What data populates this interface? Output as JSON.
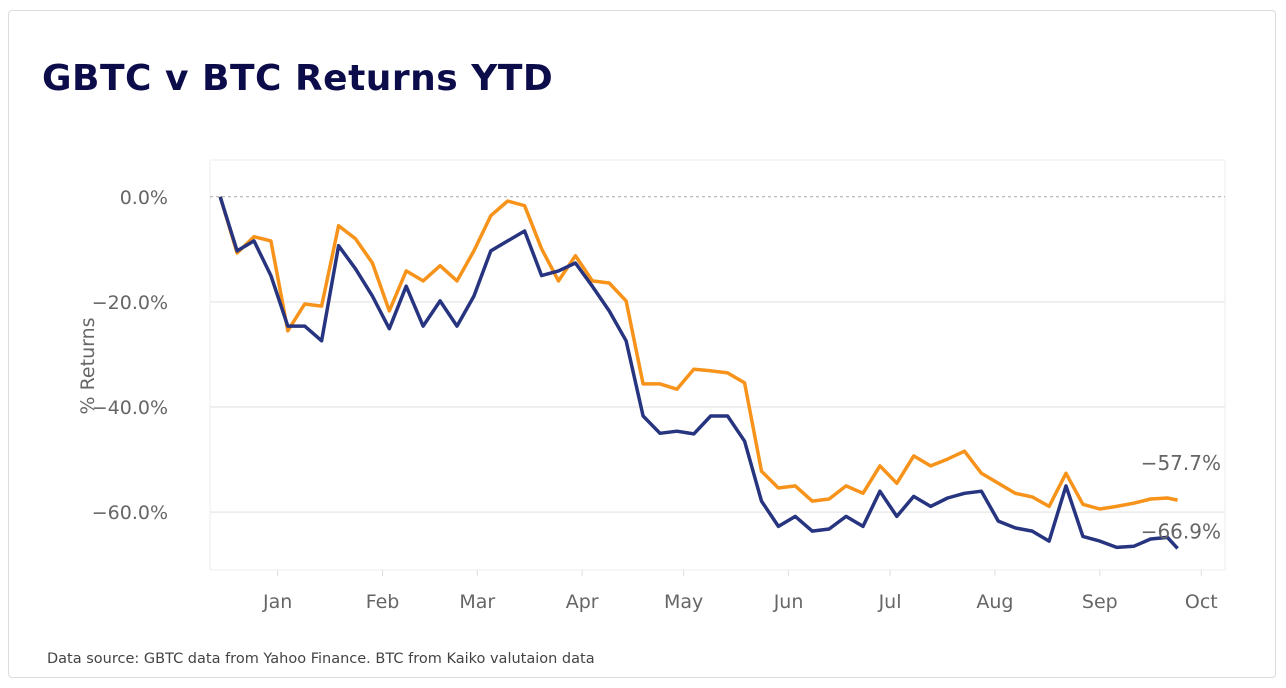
{
  "chart_data": {
    "type": "line",
    "title": "GBTC v BTC Returns YTD",
    "xlabel": "",
    "ylabel": "% Returns",
    "source": "Data source: GBTC data from Yahoo Finance. BTC from Kaiko valutaion data",
    "x_ticks": [
      "Jan",
      "Feb",
      "Mar",
      "Apr",
      "May",
      "Jun",
      "Jul",
      "Aug",
      "Sep",
      "Oct"
    ],
    "x_tick_dates": [
      "2022-01-01",
      "2022-02-01",
      "2022-03-01",
      "2022-04-01",
      "2022-05-01",
      "2022-06-01",
      "2022-07-01",
      "2022-08-01",
      "2022-09-01",
      "2022-10-01"
    ],
    "y_ticks": [
      0,
      -20,
      -40,
      -60
    ],
    "y_tick_labels": [
      "0.0%",
      "−20.0%",
      "−40.0%",
      "−60.0%"
    ],
    "xlim": [
      "2021-12-12",
      "2022-10-08"
    ],
    "ylim": [
      -71,
      7
    ],
    "grid": true,
    "zero_line": "dashed",
    "x": [
      "2021-12-15",
      "2021-12-20",
      "2021-12-25",
      "2021-12-30",
      "2022-01-04",
      "2022-01-09",
      "2022-01-14",
      "2022-01-19",
      "2022-01-24",
      "2022-01-29",
      "2022-02-03",
      "2022-02-08",
      "2022-02-13",
      "2022-02-18",
      "2022-02-23",
      "2022-02-28",
      "2022-03-05",
      "2022-03-10",
      "2022-03-15",
      "2022-03-20",
      "2022-03-25",
      "2022-03-30",
      "2022-04-04",
      "2022-04-09",
      "2022-04-14",
      "2022-04-19",
      "2022-04-24",
      "2022-04-29",
      "2022-05-04",
      "2022-05-09",
      "2022-05-14",
      "2022-05-19",
      "2022-05-24",
      "2022-05-29",
      "2022-06-03",
      "2022-06-08",
      "2022-06-13",
      "2022-06-18",
      "2022-06-23",
      "2022-06-28",
      "2022-07-03",
      "2022-07-08",
      "2022-07-13",
      "2022-07-18",
      "2022-07-23",
      "2022-07-28",
      "2022-08-02",
      "2022-08-07",
      "2022-08-12",
      "2022-08-17",
      "2022-08-22",
      "2022-08-27",
      "2022-09-01",
      "2022-09-06",
      "2022-09-11",
      "2022-09-16",
      "2022-09-21",
      "2022-09-24"
    ],
    "series": [
      {
        "color": "#f7931a",
        "end_label": "−57.7%",
        "values": [
          0,
          -10.7,
          -7.6,
          -8.4,
          -25.5,
          -20.4,
          -20.8,
          -5.5,
          -8.0,
          -12.6,
          -21.7,
          -14.1,
          -16.0,
          -13.1,
          -16.0,
          -10.3,
          -3.6,
          -0.8,
          -1.7,
          -9.9,
          -16.0,
          -11.2,
          -16.0,
          -16.4,
          -19.8,
          -35.6,
          -35.6,
          -36.6,
          -32.8,
          -33.1,
          -33.5,
          -35.4,
          -52.2,
          -55.4,
          -55.0,
          -57.9,
          -57.5,
          -55.0,
          -56.4,
          -51.2,
          -54.5,
          -49.3,
          -51.2,
          -49.9,
          -48.4,
          -52.6,
          -54.5,
          -56.4,
          -57.1,
          -58.9,
          -52.6,
          -58.5,
          -59.4,
          -58.9,
          -58.3,
          -57.5,
          -57.3,
          -57.7
        ]
      },
      {
        "color": "#27347f",
        "end_label": "−66.9%",
        "values": [
          0,
          -10.3,
          -8.4,
          -15.0,
          -24.6,
          -24.6,
          -27.4,
          -9.3,
          -13.7,
          -18.9,
          -25.1,
          -17.0,
          -24.6,
          -19.8,
          -24.6,
          -18.9,
          -10.3,
          -8.4,
          -6.5,
          -15.0,
          -14.1,
          -12.6,
          -17.0,
          -21.7,
          -27.4,
          -41.7,
          -45.0,
          -44.6,
          -45.1,
          -41.7,
          -41.7,
          -46.5,
          -57.9,
          -62.7,
          -60.8,
          -63.6,
          -63.2,
          -60.8,
          -62.7,
          -56.0,
          -60.8,
          -57.0,
          -58.9,
          -57.3,
          -56.4,
          -56.0,
          -61.7,
          -63.0,
          -63.6,
          -65.5,
          -55.0,
          -64.6,
          -65.5,
          -66.7,
          -66.5,
          -65.1,
          -64.8,
          -66.9
        ]
      }
    ]
  }
}
